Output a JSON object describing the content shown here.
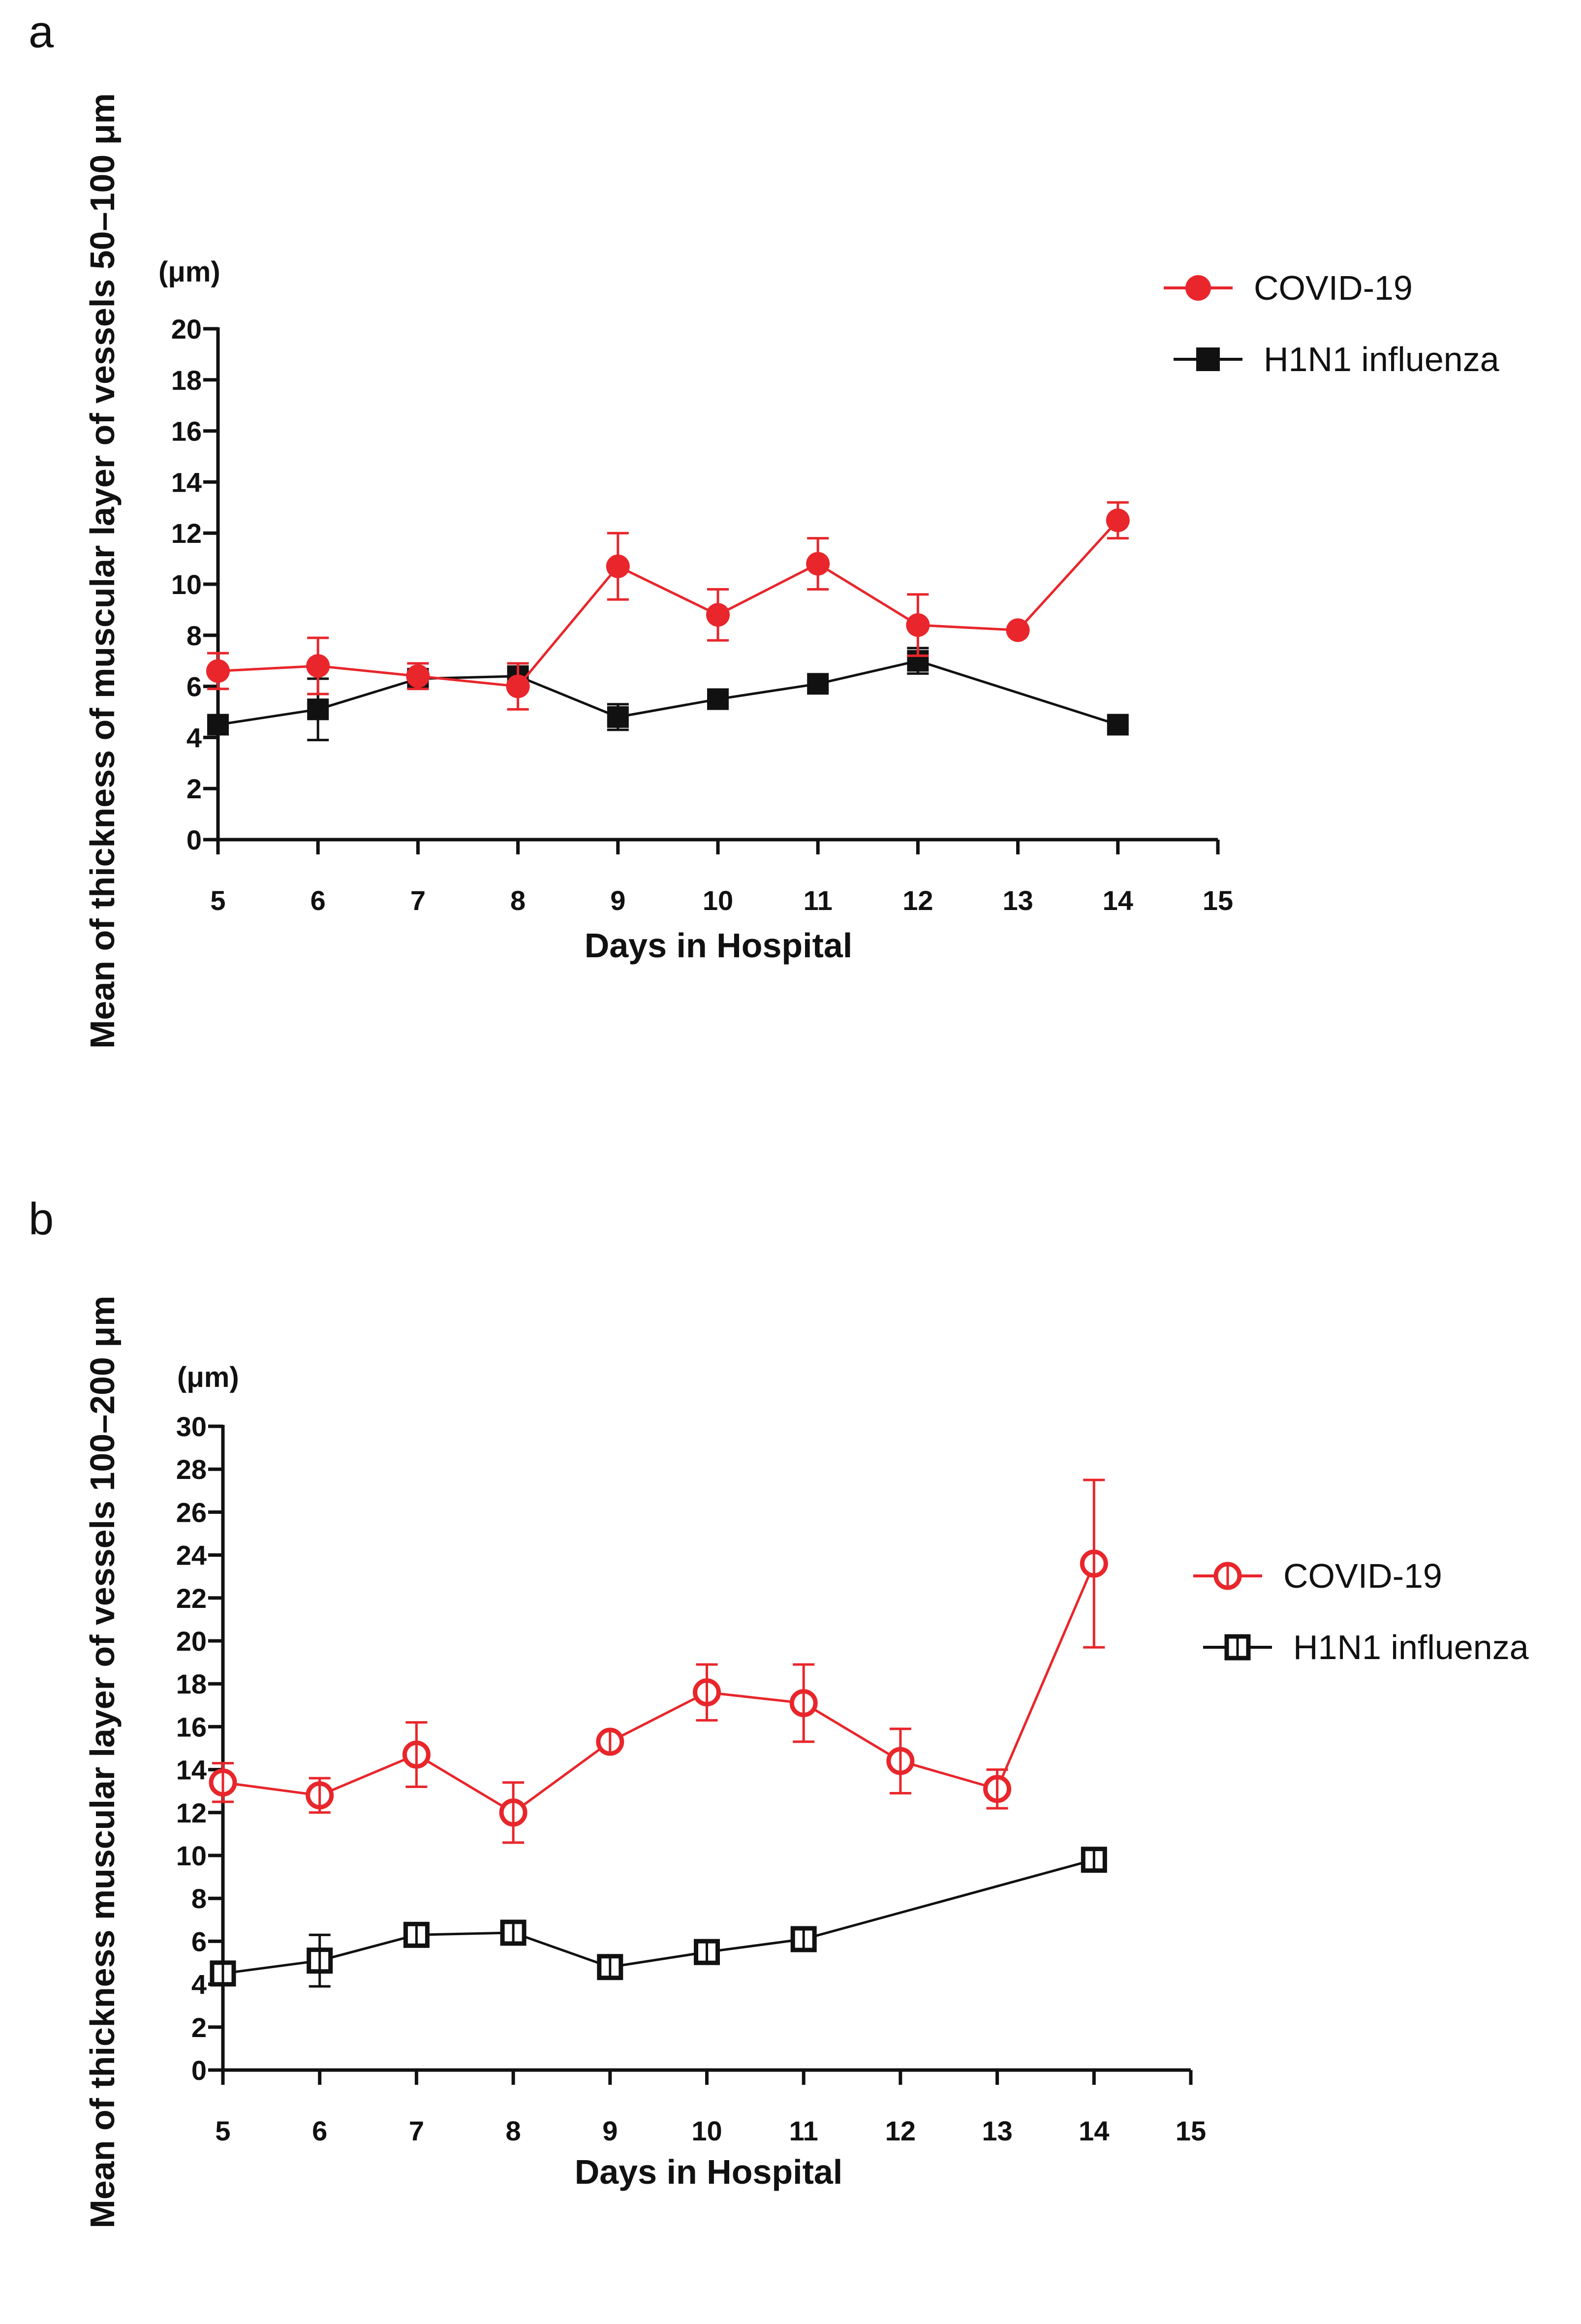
{
  "chart_data": [
    {
      "panel_label": "a",
      "type": "line",
      "unit_label": "(μm)",
      "xlabel": "Days in Hospital",
      "ylabel": "Mean of thickness of muscular layer of vessels 50–100 μm",
      "xlim": [
        5,
        15
      ],
      "ylim": [
        0,
        20
      ],
      "x_ticks": [
        "5",
        "6",
        "7",
        "8",
        "9",
        "10",
        "11",
        "12",
        "13",
        "14",
        "15"
      ],
      "y_ticks": [
        "0",
        "2",
        "4",
        "6",
        "8",
        "10",
        "12",
        "14",
        "16",
        "18",
        "20"
      ],
      "legend_position": "top-right",
      "series": [
        {
          "name": "COVID-19",
          "color": "#e8262b",
          "marker": "circle-filled",
          "points": [
            {
              "x": 5,
              "y": 6.6,
              "err": 0.7
            },
            {
              "x": 6,
              "y": 6.8,
              "err": 1.1
            },
            {
              "x": 7,
              "y": 6.4,
              "err": 0.5
            },
            {
              "x": 8,
              "y": 6.0,
              "err": 0.9
            },
            {
              "x": 9,
              "y": 10.7,
              "err": 1.3
            },
            {
              "x": 10,
              "y": 8.8,
              "err": 1.0
            },
            {
              "x": 11,
              "y": 10.8,
              "err": 1.0
            },
            {
              "x": 12,
              "y": 8.4,
              "err": 1.2
            },
            {
              "x": 13,
              "y": 8.2,
              "err": 0
            },
            {
              "x": 14,
              "y": 12.5,
              "err": 0.7
            }
          ]
        },
        {
          "name": "H1N1 influenza",
          "color": "#111111",
          "marker": "square-filled",
          "points": [
            {
              "x": 5,
              "y": 4.5,
              "err": 0.3
            },
            {
              "x": 6,
              "y": 5.1,
              "err": 1.2
            },
            {
              "x": 7,
              "y": 6.3,
              "err": 0.3
            },
            {
              "x": 8,
              "y": 6.4,
              "err": 0.3
            },
            {
              "x": 9,
              "y": 4.8,
              "err": 0.5
            },
            {
              "x": 10,
              "y": 5.5,
              "err": 0
            },
            {
              "x": 11,
              "y": 6.1,
              "err": 0
            },
            {
              "x": 12,
              "y": 7.0,
              "err": 0.5
            },
            {
              "x": 14,
              "y": 4.5,
              "err": 0
            }
          ]
        }
      ]
    },
    {
      "panel_label": "b",
      "type": "line",
      "unit_label": "(μm)",
      "xlabel": "Days in Hospital",
      "ylabel": "Mean of thickness muscular layer of vessels 100–200 μm",
      "xlim": [
        5,
        15
      ],
      "ylim": [
        0,
        30
      ],
      "x_ticks": [
        "5",
        "6",
        "7",
        "8",
        "9",
        "10",
        "11",
        "12",
        "13",
        "14",
        "15"
      ],
      "y_ticks": [
        "0",
        "2",
        "4",
        "6",
        "8",
        "10",
        "12",
        "14",
        "16",
        "18",
        "20",
        "22",
        "24",
        "26",
        "28",
        "30"
      ],
      "legend_position": "right",
      "series": [
        {
          "name": "COVID-19",
          "color": "#e8262b",
          "marker": "circle-open",
          "points": [
            {
              "x": 5,
              "y": 13.4,
              "err": 0.9
            },
            {
              "x": 6,
              "y": 12.8,
              "err": 0.8
            },
            {
              "x": 7,
              "y": 14.7,
              "err": 1.5
            },
            {
              "x": 8,
              "y": 12.0,
              "err": 1.4
            },
            {
              "x": 9,
              "y": 15.3,
              "err": 0
            },
            {
              "x": 10,
              "y": 17.6,
              "err": 1.3
            },
            {
              "x": 11,
              "y": 17.1,
              "err": 1.8
            },
            {
              "x": 12,
              "y": 14.4,
              "err": 1.5
            },
            {
              "x": 13,
              "y": 13.1,
              "err": 0.9
            },
            {
              "x": 14,
              "y": 23.6,
              "err": 3.9
            }
          ]
        },
        {
          "name": "H1N1 influenza",
          "color": "#111111",
          "marker": "square-open",
          "points": [
            {
              "x": 5,
              "y": 4.5,
              "err": 0.3
            },
            {
              "x": 6,
              "y": 5.1,
              "err": 1.2
            },
            {
              "x": 7,
              "y": 6.3,
              "err": 0.3
            },
            {
              "x": 8,
              "y": 6.4,
              "err": 0.3
            },
            {
              "x": 9,
              "y": 4.8,
              "err": 0.5
            },
            {
              "x": 10,
              "y": 5.5,
              "err": 0
            },
            {
              "x": 11,
              "y": 6.1,
              "err": 0
            },
            {
              "x": 14,
              "y": 9.8,
              "err": 0
            }
          ]
        }
      ]
    }
  ]
}
